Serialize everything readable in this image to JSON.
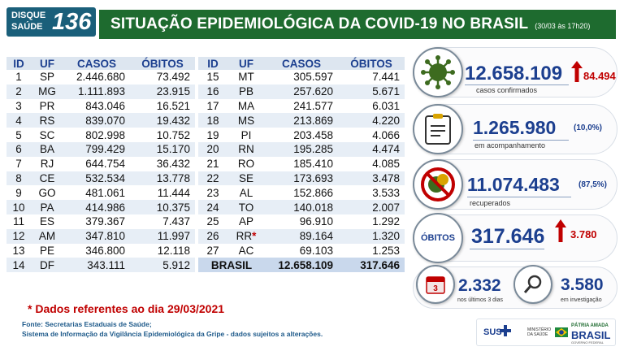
{
  "logo": {
    "line1": "DISQUE",
    "line2": "SAÚDE",
    "number": "136"
  },
  "banner": {
    "title": "SITUAÇÃO EPIDEMIOLÓGICA DA COVID-19 NO BRASIL",
    "subtitle": "(30/03 às 17h20)"
  },
  "table": {
    "headers": [
      "ID",
      "UF",
      "CASOS",
      "ÓBITOS"
    ],
    "left_rows": [
      {
        "id": "1",
        "uf": "SP",
        "casos": "2.446.680",
        "obitos": "73.492"
      },
      {
        "id": "2",
        "uf": "MG",
        "casos": "1.111.893",
        "obitos": "23.915"
      },
      {
        "id": "3",
        "uf": "PR",
        "casos": "843.046",
        "obitos": "16.521"
      },
      {
        "id": "4",
        "uf": "RS",
        "casos": "839.070",
        "obitos": "19.432"
      },
      {
        "id": "5",
        "uf": "SC",
        "casos": "802.998",
        "obitos": "10.752"
      },
      {
        "id": "6",
        "uf": "BA",
        "casos": "799.429",
        "obitos": "15.170"
      },
      {
        "id": "7",
        "uf": "RJ",
        "casos": "644.754",
        "obitos": "36.432"
      },
      {
        "id": "8",
        "uf": "CE",
        "casos": "532.534",
        "obitos": "13.778"
      },
      {
        "id": "9",
        "uf": "GO",
        "casos": "481.061",
        "obitos": "11.444"
      },
      {
        "id": "10",
        "uf": "PA",
        "casos": "414.986",
        "obitos": "10.375"
      },
      {
        "id": "11",
        "uf": "ES",
        "casos": "379.367",
        "obitos": "7.437"
      },
      {
        "id": "12",
        "uf": "AM",
        "casos": "347.810",
        "obitos": "11.997"
      },
      {
        "id": "13",
        "uf": "PE",
        "casos": "346.800",
        "obitos": "12.118"
      },
      {
        "id": "14",
        "uf": "DF",
        "casos": "343.111",
        "obitos": "5.912"
      }
    ],
    "right_rows": [
      {
        "id": "15",
        "uf": "MT",
        "casos": "305.597",
        "obitos": "7.441"
      },
      {
        "id": "16",
        "uf": "PB",
        "casos": "257.620",
        "obitos": "5.671"
      },
      {
        "id": "17",
        "uf": "MA",
        "casos": "241.577",
        "obitos": "6.031"
      },
      {
        "id": "18",
        "uf": "MS",
        "casos": "213.869",
        "obitos": "4.220"
      },
      {
        "id": "19",
        "uf": "PI",
        "casos": "203.458",
        "obitos": "4.066"
      },
      {
        "id": "20",
        "uf": "RN",
        "casos": "195.285",
        "obitos": "4.474"
      },
      {
        "id": "21",
        "uf": "RO",
        "casos": "185.410",
        "obitos": "4.085"
      },
      {
        "id": "22",
        "uf": "SE",
        "casos": "173.693",
        "obitos": "3.478"
      },
      {
        "id": "23",
        "uf": "AL",
        "casos": "152.866",
        "obitos": "3.533"
      },
      {
        "id": "24",
        "uf": "TO",
        "casos": "140.018",
        "obitos": "2.007"
      },
      {
        "id": "25",
        "uf": "AP",
        "casos": "96.910",
        "obitos": "1.292"
      },
      {
        "id": "26",
        "uf": "RR",
        "star": "*",
        "casos": "89.164",
        "obitos": "1.320"
      },
      {
        "id": "27",
        "uf": "AC",
        "casos": "69.103",
        "obitos": "1.253"
      }
    ],
    "total": {
      "label": "BRASIL",
      "casos": "12.658.109",
      "obitos": "317.646"
    }
  },
  "note": "* Dados referentes ao dia 29/03/2021",
  "source": {
    "line1": "Fonte: Secretarias Estaduais de Saúde;",
    "line2": "Sistema de Informação da Vigilância Epidemiológica da Gripe - dados sujeitos a alterações."
  },
  "stats": {
    "confirmed": {
      "value": "12.658.109",
      "delta": "84.494",
      "label": "casos confirmados",
      "icon": "virus-icon"
    },
    "monitoring": {
      "value": "1.265.980",
      "pct": "(10,0%)",
      "label": "em acompanhamento",
      "icon": "clipboard-icon"
    },
    "recovered": {
      "value": "11.074.483",
      "pct": "(87,5%)",
      "label": "recuperados",
      "icon": "no-virus-icon"
    },
    "deaths": {
      "badge": "ÓBITOS",
      "value": "317.646",
      "delta": "3.780"
    },
    "recent": {
      "value": "2.332",
      "label": "nos últimos 3 dias",
      "icon": "calendar-icon",
      "cal_num": "3"
    },
    "investigation": {
      "value": "3.580",
      "label": "em investigação",
      "icon": "magnifier-icon"
    }
  },
  "footer": {
    "sus": "SUS",
    "ministry": "MINISTÉRIO DA SAÚDE",
    "patria": "PÁTRIA AMADA",
    "brasil": "BRASIL",
    "gov": "GOVERNO FEDERAL"
  },
  "colors": {
    "banner": "#1e6b2f",
    "accent_blue": "#1c3f8f",
    "alert_red": "#c00000"
  }
}
